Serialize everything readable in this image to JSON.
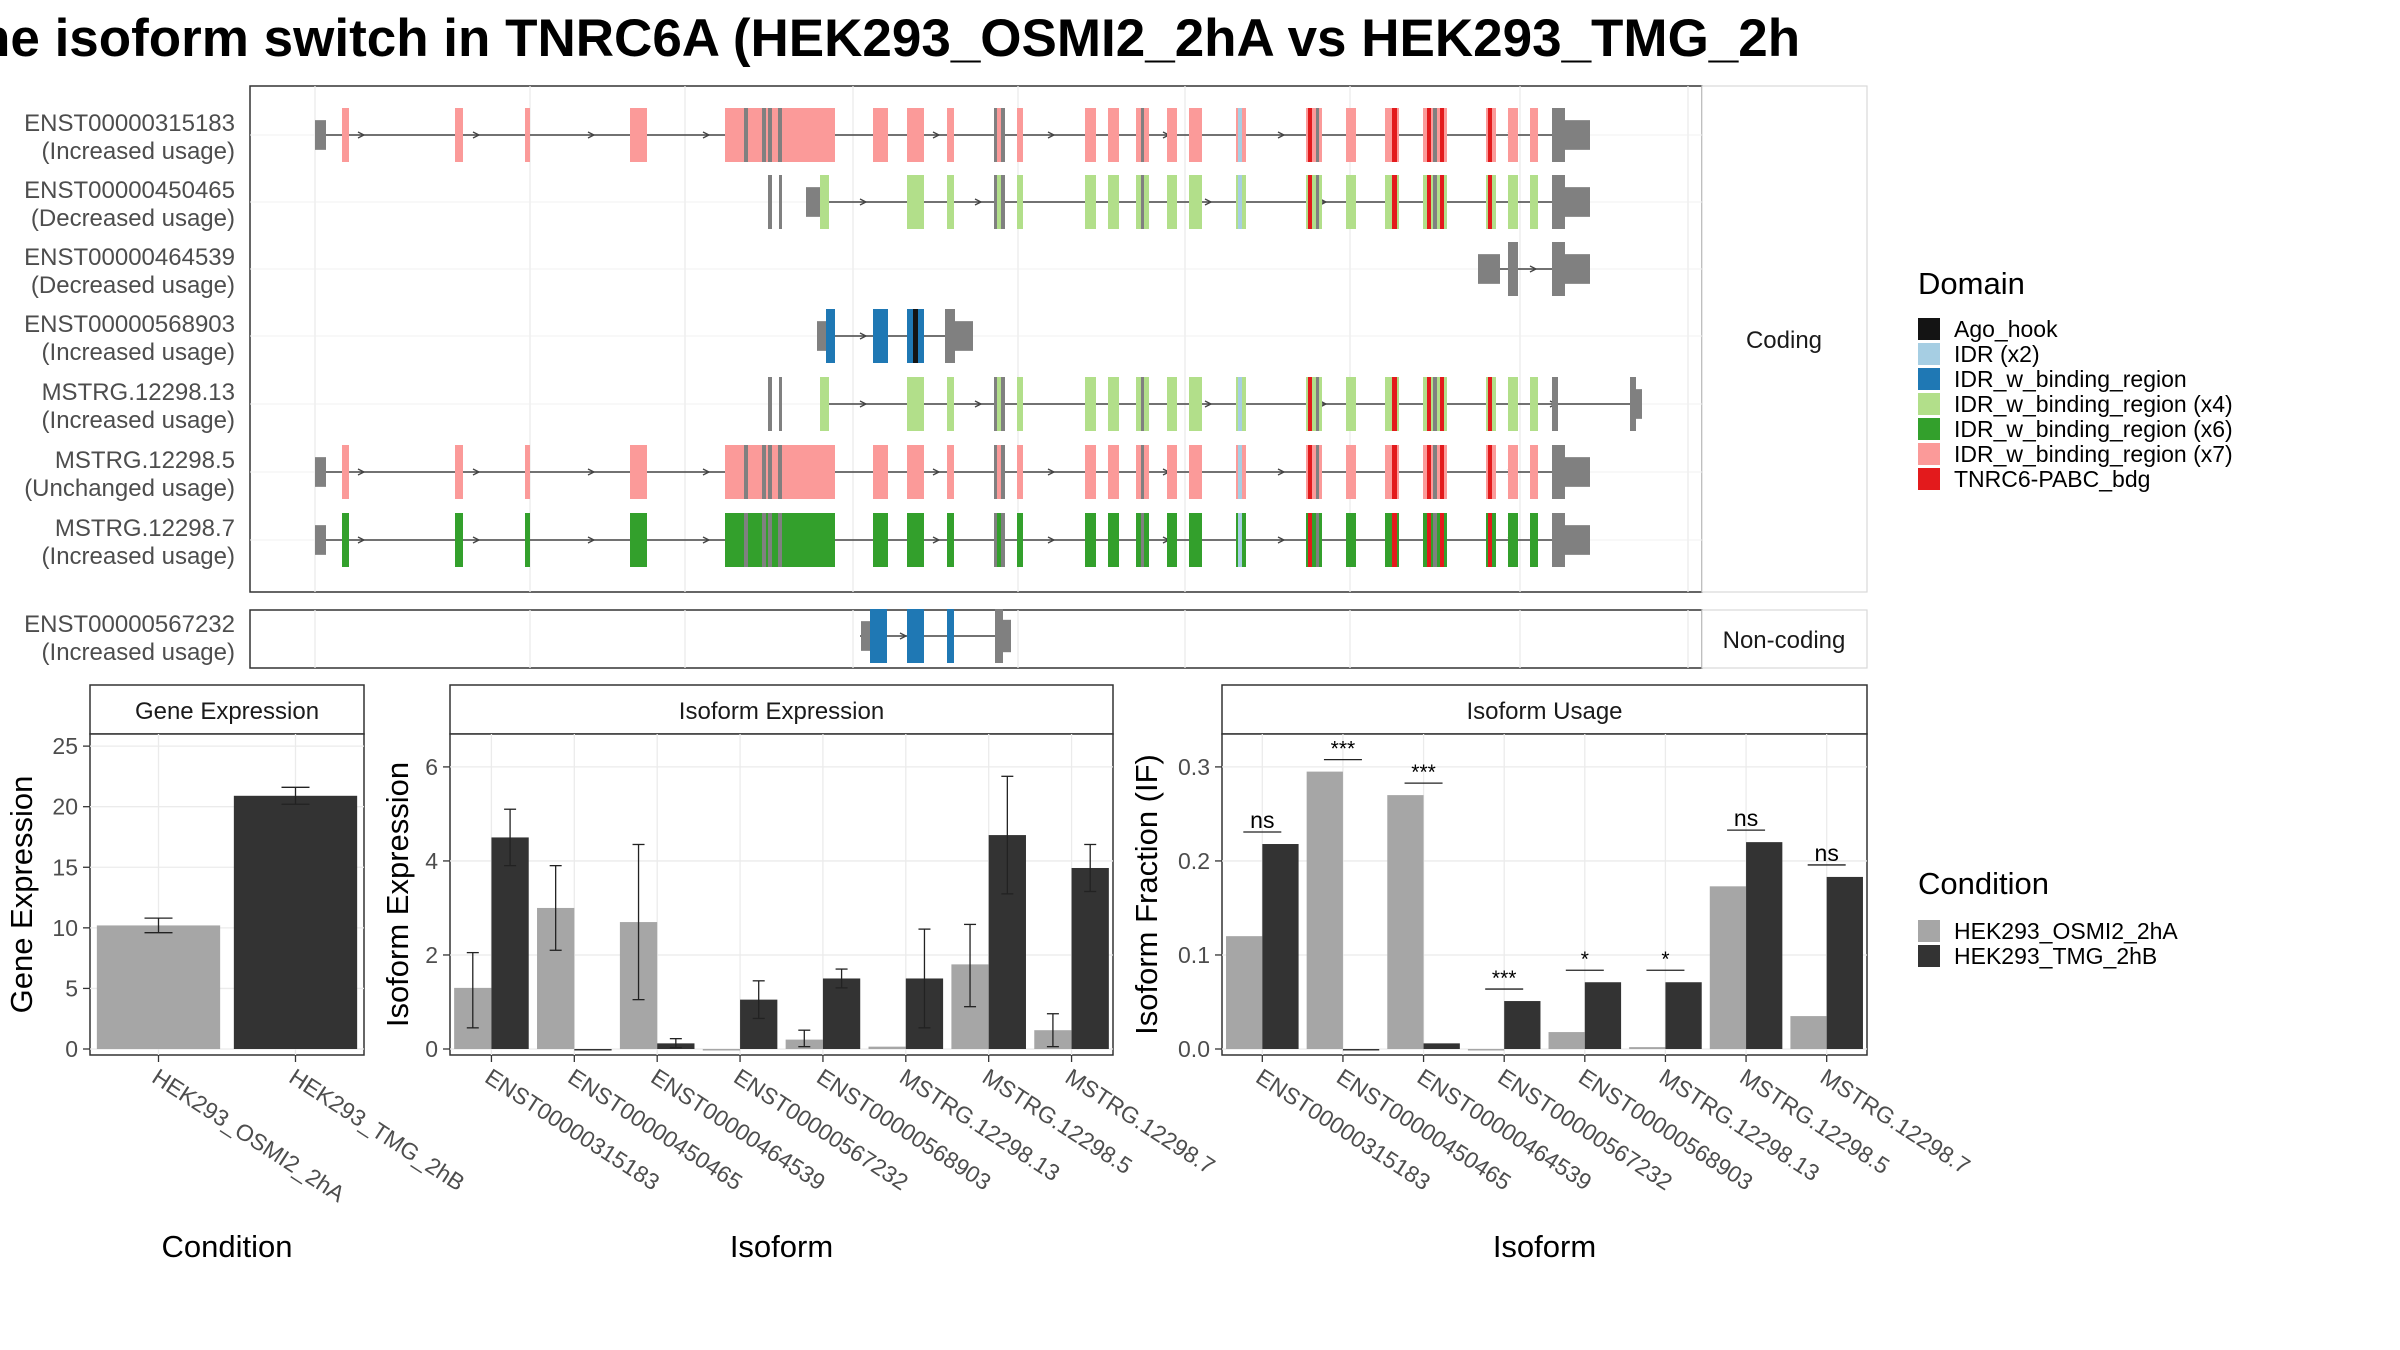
{
  "title": "ne isoform switch in TNRC6A (HEK293_OSMI2_2hA vs HEK293_TMG_2h",
  "colors": {
    "Ago_hook": "#141414",
    "IDR (x2)": "#a6cee3",
    "IDR_w_binding_region": "#1f78b4",
    "IDR_w_binding_region (x4)": "#b2df8a",
    "IDR_w_binding_region (x6)": "#33a02c",
    "IDR_w_binding_region (x7)": "#fb9a99",
    "TNRC6-PABC_bdg": "#e31a1c",
    "utr": "#808080",
    "condA": "#a6a6a6",
    "condB": "#333333"
  },
  "structure": {
    "coding_label": "Coding",
    "noncoding_label": "Non-coding",
    "isoforms": [
      {
        "id": "ENST00000315183",
        "usage": "(Increased usage)",
        "group": "coding",
        "kind": "full",
        "domain": "IDR_w_binding_region (x7)"
      },
      {
        "id": "ENST00000450465",
        "usage": "(Decreased usage)",
        "group": "coding",
        "kind": "mid",
        "domain": "IDR_w_binding_region (x4)"
      },
      {
        "id": "ENST00000464539",
        "usage": "(Decreased usage)",
        "group": "coding",
        "kind": "tail",
        "domain": "none"
      },
      {
        "id": "ENST00000568903",
        "usage": "(Increased usage)",
        "group": "coding",
        "kind": "short",
        "domain": "IDR_w_binding_region"
      },
      {
        "id": "MSTRG.12298.13",
        "usage": "(Increased usage)",
        "group": "coding",
        "kind": "mid3",
        "domain": "IDR_w_binding_region (x4)"
      },
      {
        "id": "MSTRG.12298.5",
        "usage": "(Unchanged usage)",
        "group": "coding",
        "kind": "full",
        "domain": "IDR_w_binding_region (x7)"
      },
      {
        "id": "MSTRG.12298.7",
        "usage": "(Increased usage)",
        "group": "coding",
        "kind": "full",
        "domain": "IDR_w_binding_region (x6)"
      },
      {
        "id": "ENST00000567232",
        "usage": "(Increased usage)",
        "group": "noncoding",
        "kind": "nc",
        "domain": "IDR_w_binding_region"
      }
    ]
  },
  "legend_domain": {
    "title": "Domain",
    "items": [
      "Ago_hook",
      "IDR (x2)",
      "IDR_w_binding_region",
      "IDR_w_binding_region (x4)",
      "IDR_w_binding_region (x6)",
      "IDR_w_binding_region (x7)",
      "TNRC6-PABC_bdg"
    ]
  },
  "legend_condition": {
    "title": "Condition",
    "items": [
      "HEK293_OSMI2_2hA",
      "HEK293_TMG_2hB"
    ]
  },
  "chart_data": [
    {
      "type": "bar",
      "panel": "Gene Expression",
      "xlabel": "Condition",
      "ylabel": "Gene Expression",
      "ylim": [
        0,
        26
      ],
      "yticks": [
        0,
        5,
        10,
        15,
        20,
        25
      ],
      "categories": [
        "HEK293_OSMI2_2hA",
        "HEK293_TMG_2hB"
      ],
      "values": [
        10.2,
        20.9
      ],
      "errors": [
        [
          9.6,
          10.8
        ],
        [
          20.2,
          21.6
        ]
      ]
    },
    {
      "type": "bar",
      "panel": "Isoform Expression",
      "xlabel": "Isoform",
      "ylabel": "Isoform Expression",
      "ylim": [
        0,
        6.7
      ],
      "yticks": [
        0,
        2,
        4,
        6
      ],
      "categories": [
        "ENST00000315183",
        "ENST00000450465",
        "ENST00000464539",
        "ENST00000567232",
        "ENST00000568903",
        "MSTRG.12298.13",
        "MSTRG.12298.5",
        "MSTRG.12298.7"
      ],
      "series": [
        {
          "name": "HEK293_OSMI2_2hA",
          "values": [
            1.3,
            3.0,
            2.7,
            0.0,
            0.2,
            0.05,
            1.8,
            0.4
          ],
          "errors": [
            [
              0.45,
              2.05
            ],
            [
              2.1,
              3.9
            ],
            [
              1.05,
              4.35
            ],
            null,
            [
              0.05,
              0.4
            ],
            null,
            [
              0.9,
              2.65
            ],
            [
              0.05,
              0.75
            ]
          ]
        },
        {
          "name": "HEK293_TMG_2hB",
          "values": [
            4.5,
            0.0,
            0.12,
            1.05,
            1.5,
            1.5,
            4.55,
            3.85
          ],
          "errors": [
            [
              3.9,
              5.1
            ],
            null,
            [
              0.03,
              0.22
            ],
            [
              0.65,
              1.45
            ],
            [
              1.3,
              1.7
            ],
            [
              0.45,
              2.55
            ],
            [
              3.3,
              5.8
            ],
            [
              3.35,
              4.35
            ]
          ]
        }
      ]
    },
    {
      "type": "bar",
      "panel": "Isoform Usage",
      "xlabel": "Isoform",
      "ylabel": "Isoform Fraction (IF)",
      "ylim": [
        0,
        0.335
      ],
      "yticks": [
        0.0,
        0.1,
        0.2,
        0.3
      ],
      "ytick_labels": [
        "0.0",
        "0.1",
        "0.2",
        "0.3"
      ],
      "categories": [
        "ENST00000315183",
        "ENST00000450465",
        "ENST00000464539",
        "ENST00000567232",
        "ENST00000568903",
        "MSTRG.12298.13",
        "MSTRG.12298.5",
        "MSTRG.12298.7"
      ],
      "series": [
        {
          "name": "HEK293_OSMI2_2hA",
          "values": [
            0.12,
            0.295,
            0.27,
            0.0,
            0.018,
            0.002,
            0.173,
            0.035
          ]
        },
        {
          "name": "HEK293_TMG_2hB",
          "values": [
            0.218,
            0.0,
            0.006,
            0.051,
            0.071,
            0.071,
            0.22,
            0.183
          ]
        }
      ],
      "significance": [
        "ns",
        "***",
        "***",
        "***",
        "*",
        "*",
        "ns",
        "ns"
      ]
    }
  ]
}
